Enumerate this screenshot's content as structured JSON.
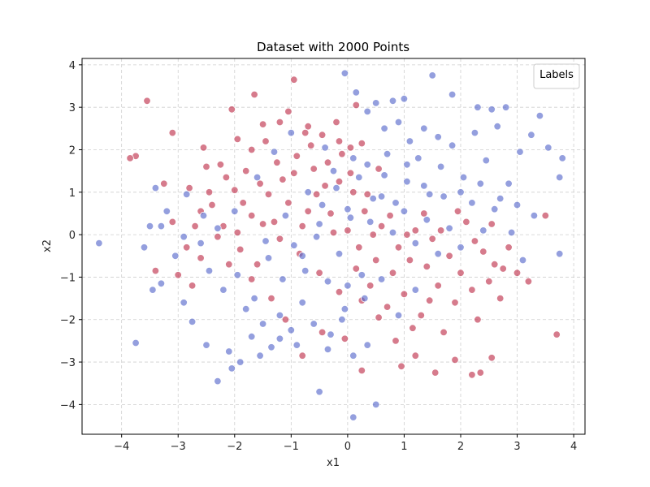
{
  "chart_data": {
    "type": "scatter",
    "title": "Dataset with 2000 Points",
    "xlabel": "x1",
    "ylabel": "x2",
    "xlim": [
      -4.7,
      4.2
    ],
    "ylim": [
      -4.7,
      4.15
    ],
    "xticks": [
      -4,
      -3,
      -2,
      -1,
      0,
      1,
      2,
      3,
      4
    ],
    "yticks": [
      -4,
      -3,
      -2,
      -1,
      0,
      1,
      2,
      3,
      4
    ],
    "xtick_labels": [
      "−4",
      "−3",
      "−2",
      "−1",
      "0",
      "1",
      "2",
      "3",
      "4"
    ],
    "ytick_labels": [
      "−4",
      "−3",
      "−2",
      "−1",
      "0",
      "1",
      "2",
      "3",
      "4"
    ],
    "grid": true,
    "legend": {
      "title": "Labels",
      "placement": "top-right"
    },
    "colors": {
      "class_0": "#c0344f",
      "class_1": "#5a6ccc"
    },
    "marker_opacity": 0.65,
    "series": [
      {
        "label_value": 0,
        "color": "#c0344f",
        "points": [
          [
            -3.55,
            3.15
          ],
          [
            -3.85,
            1.8
          ],
          [
            -3.75,
            1.85
          ],
          [
            -3.25,
            1.2
          ],
          [
            -3.1,
            2.4
          ],
          [
            -2.55,
            2.05
          ],
          [
            -2.5,
            1.6
          ],
          [
            -2.25,
            1.65
          ],
          [
            -2.05,
            2.95
          ],
          [
            -1.95,
            2.25
          ],
          [
            -1.65,
            3.3
          ],
          [
            -1.5,
            2.6
          ],
          [
            -1.2,
            2.65
          ],
          [
            -0.95,
            3.65
          ],
          [
            -0.7,
            2.55
          ],
          [
            -0.75,
            2.4
          ],
          [
            -0.45,
            2.35
          ],
          [
            -0.2,
            2.65
          ],
          [
            -0.15,
            2.2
          ],
          [
            0.05,
            2.05
          ],
          [
            0.15,
            3.05
          ],
          [
            -1.05,
            2.9
          ],
          [
            -1.7,
            2.0
          ],
          [
            -1.45,
            2.2
          ],
          [
            -2.8,
            1.1
          ],
          [
            -2.6,
            0.55
          ],
          [
            -2.85,
            -0.3
          ],
          [
            -3.1,
            0.3
          ],
          [
            -3.4,
            -0.85
          ],
          [
            -3.0,
            -0.95
          ],
          [
            -2.75,
            -1.2
          ],
          [
            -2.6,
            -0.55
          ],
          [
            -2.2,
            0.2
          ],
          [
            -2.1,
            -0.7
          ],
          [
            -1.95,
            0.05
          ],
          [
            -1.7,
            0.45
          ],
          [
            -1.6,
            -0.7
          ],
          [
            -1.4,
            0.95
          ],
          [
            -1.3,
            0.3
          ],
          [
            -1.15,
            1.3
          ],
          [
            -1.05,
            0.75
          ],
          [
            -0.9,
            1.85
          ],
          [
            -0.8,
            0.2
          ],
          [
            -0.6,
            1.55
          ],
          [
            -0.55,
            0.95
          ],
          [
            -0.35,
            1.7
          ],
          [
            -0.3,
            0.5
          ],
          [
            -0.15,
            1.25
          ],
          [
            0.0,
            0.1
          ],
          [
            0.1,
            1.0
          ],
          [
            0.2,
            -0.3
          ],
          [
            0.3,
            0.55
          ],
          [
            0.4,
            -1.2
          ],
          [
            0.5,
            -0.6
          ],
          [
            0.6,
            0.2
          ],
          [
            0.7,
            -1.7
          ],
          [
            0.8,
            -0.9
          ],
          [
            0.9,
            -0.3
          ],
          [
            1.0,
            -1.4
          ],
          [
            1.1,
            -0.6
          ],
          [
            1.2,
            0.1
          ],
          [
            1.3,
            -1.9
          ],
          [
            1.4,
            -0.75
          ],
          [
            1.5,
            -0.1
          ],
          [
            1.6,
            -1.2
          ],
          [
            1.7,
            -2.3
          ],
          [
            1.8,
            -0.5
          ],
          [
            1.9,
            -1.6
          ],
          [
            2.0,
            -0.9
          ],
          [
            2.1,
            0.3
          ],
          [
            2.2,
            -1.3
          ],
          [
            2.3,
            -2.0
          ],
          [
            2.4,
            -0.4
          ],
          [
            2.5,
            -1.1
          ],
          [
            2.6,
            -0.7
          ],
          [
            2.7,
            -1.5
          ],
          [
            2.85,
            -0.3
          ],
          [
            3.0,
            -0.9
          ],
          [
            3.2,
            -1.1
          ],
          [
            3.5,
            0.45
          ],
          [
            3.7,
            -2.35
          ],
          [
            2.2,
            -3.3
          ],
          [
            2.35,
            -3.25
          ],
          [
            2.55,
            -2.9
          ],
          [
            1.9,
            -2.95
          ],
          [
            1.55,
            -3.25
          ],
          [
            1.2,
            -2.85
          ],
          [
            0.95,
            -3.1
          ],
          [
            0.25,
            -3.2
          ],
          [
            -0.05,
            -2.45
          ],
          [
            -0.45,
            -2.3
          ],
          [
            -0.8,
            -2.85
          ],
          [
            -1.1,
            -2.0
          ],
          [
            -1.35,
            -1.5
          ],
          [
            -1.7,
            -1.05
          ],
          [
            -1.9,
            -0.35
          ],
          [
            -2.3,
            -0.05
          ],
          [
            -2.4,
            0.7
          ],
          [
            -2.0,
            1.05
          ],
          [
            -1.8,
            1.5
          ],
          [
            -1.55,
            1.2
          ],
          [
            -1.25,
            1.7
          ],
          [
            -0.95,
            1.45
          ],
          [
            -0.65,
            2.1
          ],
          [
            -0.4,
            1.15
          ],
          [
            -0.1,
            1.9
          ],
          [
            0.05,
            1.45
          ],
          [
            0.25,
            2.15
          ],
          [
            0.35,
            0.95
          ],
          [
            0.55,
            1.55
          ],
          [
            -0.7,
            0.55
          ],
          [
            -0.25,
            0.05
          ],
          [
            0.15,
            -0.8
          ],
          [
            0.45,
            0.0
          ],
          [
            0.75,
            0.45
          ],
          [
            1.05,
            0.0
          ],
          [
            1.35,
            0.5
          ],
          [
            1.65,
            0.1
          ],
          [
            1.95,
            0.55
          ],
          [
            2.25,
            -0.15
          ],
          [
            2.55,
            0.25
          ],
          [
            2.75,
            -0.8
          ],
          [
            1.45,
            -1.55
          ],
          [
            1.15,
            -2.2
          ],
          [
            0.85,
            -2.5
          ],
          [
            0.55,
            -1.95
          ],
          [
            0.25,
            -1.55
          ],
          [
            -0.15,
            -1.35
          ],
          [
            -0.5,
            -0.9
          ],
          [
            -0.85,
            -0.45
          ],
          [
            -1.2,
            -0.1
          ],
          [
            -1.5,
            0.25
          ],
          [
            -1.85,
            0.75
          ],
          [
            -2.15,
            1.35
          ],
          [
            -2.45,
            1.0
          ],
          [
            -2.7,
            0.2
          ]
        ]
      },
      {
        "label_value": 1,
        "color": "#5a6ccc",
        "points": [
          [
            -4.4,
            -0.2
          ],
          [
            -3.75,
            -2.55
          ],
          [
            -3.6,
            -0.3
          ],
          [
            -3.45,
            -1.3
          ],
          [
            -3.3,
            -1.15
          ],
          [
            -3.2,
            0.55
          ],
          [
            -3.05,
            -0.5
          ],
          [
            -2.9,
            -1.6
          ],
          [
            -2.75,
            -2.05
          ],
          [
            -2.5,
            -2.6
          ],
          [
            -2.3,
            -3.45
          ],
          [
            -2.1,
            -2.75
          ],
          [
            -2.05,
            -3.15
          ],
          [
            -1.9,
            -3.0
          ],
          [
            -1.7,
            -2.4
          ],
          [
            -1.55,
            -2.85
          ],
          [
            -1.35,
            -2.65
          ],
          [
            -1.2,
            -1.9
          ],
          [
            -1.0,
            -2.25
          ],
          [
            -0.8,
            -1.6
          ],
          [
            -0.5,
            -3.7
          ],
          [
            -0.35,
            -2.7
          ],
          [
            -0.1,
            -2.0
          ],
          [
            0.1,
            -2.85
          ],
          [
            0.5,
            -4.0
          ],
          [
            0.1,
            -4.3
          ],
          [
            0.35,
            -2.6
          ],
          [
            -0.05,
            -1.75
          ],
          [
            -2.2,
            -1.3
          ],
          [
            -2.45,
            -0.85
          ],
          [
            -1.95,
            -0.95
          ],
          [
            -1.65,
            -1.5
          ],
          [
            -1.4,
            -0.55
          ],
          [
            -1.15,
            -1.05
          ],
          [
            -0.95,
            -0.25
          ],
          [
            -0.75,
            -0.85
          ],
          [
            -0.55,
            -0.05
          ],
          [
            -0.35,
            -1.1
          ],
          [
            -0.15,
            -0.45
          ],
          [
            0.05,
            0.4
          ],
          [
            0.25,
            -0.95
          ],
          [
            0.45,
            0.85
          ],
          [
            0.65,
            1.4
          ],
          [
            0.85,
            0.75
          ],
          [
            1.05,
            1.25
          ],
          [
            1.25,
            1.8
          ],
          [
            1.45,
            0.95
          ],
          [
            1.65,
            1.6
          ],
          [
            1.85,
            2.1
          ],
          [
            2.05,
            1.35
          ],
          [
            2.25,
            2.4
          ],
          [
            2.45,
            1.75
          ],
          [
            2.65,
            2.55
          ],
          [
            2.85,
            1.2
          ],
          [
            3.05,
            1.95
          ],
          [
            3.25,
            2.35
          ],
          [
            3.4,
            2.8
          ],
          [
            3.55,
            2.05
          ],
          [
            3.75,
            1.35
          ],
          [
            3.8,
            1.8
          ],
          [
            3.3,
            0.45
          ],
          [
            3.1,
            -0.6
          ],
          [
            3.75,
            -0.45
          ],
          [
            2.9,
            0.05
          ],
          [
            2.55,
            2.95
          ],
          [
            2.3,
            3.0
          ],
          [
            2.8,
            3.0
          ],
          [
            1.85,
            3.3
          ],
          [
            1.5,
            3.75
          ],
          [
            1.0,
            3.2
          ],
          [
            0.8,
            3.15
          ],
          [
            0.5,
            3.1
          ],
          [
            0.15,
            3.35
          ],
          [
            -0.05,
            3.8
          ],
          [
            0.35,
            2.9
          ],
          [
            0.65,
            2.5
          ],
          [
            0.9,
            2.65
          ],
          [
            1.1,
            2.2
          ],
          [
            1.35,
            2.5
          ],
          [
            1.6,
            2.3
          ],
          [
            -0.4,
            2.05
          ],
          [
            -0.2,
            1.1
          ],
          [
            0.0,
            0.6
          ],
          [
            0.2,
            1.35
          ],
          [
            0.4,
            0.3
          ],
          [
            0.6,
            0.9
          ],
          [
            0.8,
            0.05
          ],
          [
            1.0,
            0.55
          ],
          [
            1.2,
            -0.2
          ],
          [
            1.4,
            0.35
          ],
          [
            1.6,
            -0.45
          ],
          [
            1.8,
            0.15
          ],
          [
            2.0,
            -0.3
          ],
          [
            2.2,
            0.75
          ],
          [
            2.4,
            0.1
          ],
          [
            2.6,
            0.6
          ],
          [
            -1.0,
            2.4
          ],
          [
            -1.3,
            1.95
          ],
          [
            -1.6,
            1.35
          ],
          [
            -2.0,
            0.55
          ],
          [
            -2.3,
            0.15
          ],
          [
            -2.6,
            -0.2
          ],
          [
            -2.9,
            -0.05
          ],
          [
            -3.3,
            0.2
          ],
          [
            -3.5,
            0.2
          ],
          [
            -3.4,
            1.1
          ],
          [
            -2.85,
            0.95
          ],
          [
            -2.55,
            0.45
          ],
          [
            -1.8,
            -1.75
          ],
          [
            -1.5,
            -2.1
          ],
          [
            -1.2,
            -2.45
          ],
          [
            -0.9,
            -2.6
          ],
          [
            -0.6,
            -2.1
          ],
          [
            -0.3,
            -2.35
          ],
          [
            0.0,
            -1.2
          ],
          [
            0.3,
            -1.5
          ],
          [
            0.6,
            -1.05
          ],
          [
            0.9,
            -1.9
          ],
          [
            1.2,
            -1.3
          ],
          [
            -0.7,
            1.0
          ],
          [
            -0.45,
            0.7
          ],
          [
            -0.25,
            1.5
          ],
          [
            0.1,
            1.8
          ],
          [
            0.35,
            1.65
          ],
          [
            0.7,
            1.9
          ],
          [
            1.05,
            1.65
          ],
          [
            1.35,
            1.15
          ],
          [
            1.7,
            0.9
          ],
          [
            2.0,
            1.0
          ],
          [
            2.35,
            1.2
          ],
          [
            2.7,
            0.85
          ],
          [
            3.0,
            0.7
          ],
          [
            -1.45,
            -0.15
          ],
          [
            -1.1,
            0.45
          ],
          [
            -0.8,
            -0.5
          ],
          [
            -0.5,
            0.25
          ]
        ]
      }
    ]
  }
}
